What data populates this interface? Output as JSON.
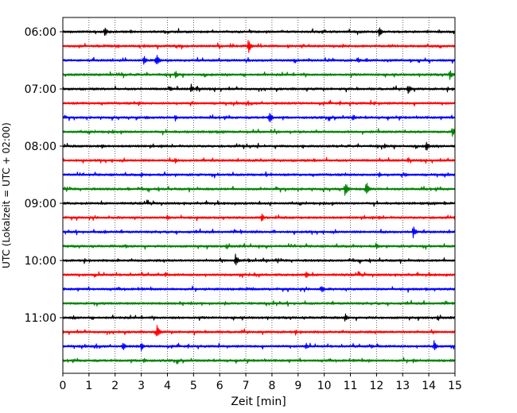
{
  "chart_data": {
    "type": "line",
    "title": "",
    "xlabel": "Zeit  [min]",
    "ylabel": "UTC (Lokalzeit = UTC + 02:00)",
    "xlim": [
      0,
      15
    ],
    "x_ticks": [
      "0",
      "1",
      "2",
      "3",
      "4",
      "5",
      "6",
      "7",
      "8",
      "9",
      "10",
      "11",
      "12",
      "13",
      "14",
      "15"
    ],
    "y_ticks": [
      "06:00",
      "07:00",
      "08:00",
      "09:00",
      "10:00",
      "11:00"
    ],
    "grid": "vertical-dotted",
    "trace_interval_min": 15,
    "colors": [
      "#000000",
      "#ff0000",
      "#0000ff",
      "#008000"
    ],
    "traces": [
      {
        "start": "06:00",
        "color": "#000000",
        "events": [
          [
            1.6,
            7
          ],
          [
            12.1,
            9
          ],
          [
            2.6,
            3
          ]
        ]
      },
      {
        "start": "06:15",
        "color": "#ff0000",
        "events": [
          [
            3.1,
            3
          ],
          [
            7.1,
            10
          ],
          [
            10.7,
            3
          ]
        ]
      },
      {
        "start": "06:30",
        "color": "#0000ff",
        "events": [
          [
            3.1,
            7
          ],
          [
            3.6,
            9
          ],
          [
            11.3,
            4
          ]
        ]
      },
      {
        "start": "06:45",
        "color": "#008000",
        "events": [
          [
            4.3,
            6
          ],
          [
            14.8,
            8
          ]
        ]
      },
      {
        "start": "07:00",
        "color": "#000000",
        "events": [
          [
            4.1,
            4
          ],
          [
            4.9,
            7
          ],
          [
            13.2,
            8
          ]
        ]
      },
      {
        "start": "07:15",
        "color": "#ff0000",
        "events": [
          [
            2.9,
            3
          ],
          [
            11.9,
            3
          ]
        ]
      },
      {
        "start": "07:30",
        "color": "#0000ff",
        "events": [
          [
            3.2,
            3
          ],
          [
            4.3,
            5
          ],
          [
            7.9,
            9
          ],
          [
            11.1,
            5
          ]
        ]
      },
      {
        "start": "07:45",
        "color": "#008000",
        "events": [
          [
            1.9,
            3
          ],
          [
            14.9,
            8
          ]
        ]
      },
      {
        "start": "08:00",
        "color": "#000000",
        "events": [
          [
            1.5,
            3
          ],
          [
            12.3,
            4
          ],
          [
            13.9,
            8
          ]
        ]
      },
      {
        "start": "08:15",
        "color": "#ff0000",
        "events": [
          [
            4.3,
            4
          ],
          [
            9.6,
            3
          ]
        ]
      },
      {
        "start": "08:30",
        "color": "#0000ff",
        "events": [
          [
            3.0,
            3
          ],
          [
            12.1,
            4
          ],
          [
            13.1,
            3
          ]
        ]
      },
      {
        "start": "08:45",
        "color": "#008000",
        "events": [
          [
            10.8,
            11
          ],
          [
            11.6,
            11
          ],
          [
            2.5,
            3
          ]
        ]
      },
      {
        "start": "09:00",
        "color": "#000000",
        "events": [
          [
            14.6,
            3
          ]
        ]
      },
      {
        "start": "09:15",
        "color": "#ff0000",
        "events": [
          [
            4.0,
            4
          ],
          [
            7.6,
            7
          ],
          [
            12.1,
            3
          ]
        ]
      },
      {
        "start": "09:30",
        "color": "#0000ff",
        "events": [
          [
            1.6,
            3
          ],
          [
            13.4,
            9
          ],
          [
            6.8,
            3
          ]
        ]
      },
      {
        "start": "09:45",
        "color": "#008000",
        "events": [
          [
            2.4,
            3
          ],
          [
            12.0,
            4
          ]
        ]
      },
      {
        "start": "10:00",
        "color": "#000000",
        "events": [
          [
            6.6,
            10
          ],
          [
            7.1,
            4
          ],
          [
            2.1,
            3
          ]
        ]
      },
      {
        "start": "10:15",
        "color": "#ff0000",
        "events": [
          [
            9.3,
            6
          ],
          [
            3.9,
            3
          ]
        ]
      },
      {
        "start": "10:30",
        "color": "#0000ff",
        "events": [
          [
            9.9,
            6
          ],
          [
            13.9,
            3
          ]
        ]
      },
      {
        "start": "10:45",
        "color": "#008000",
        "events": [
          [
            6.2,
            3
          ]
        ]
      },
      {
        "start": "11:00",
        "color": "#000000",
        "events": [
          [
            10.8,
            6
          ],
          [
            0.4,
            3
          ]
        ]
      },
      {
        "start": "11:15",
        "color": "#ff0000",
        "events": [
          [
            3.6,
            10
          ],
          [
            8.9,
            3
          ]
        ]
      },
      {
        "start": "11:30",
        "color": "#0000ff",
        "events": [
          [
            2.3,
            6
          ],
          [
            3.0,
            6
          ],
          [
            9.3,
            5
          ],
          [
            14.2,
            8
          ],
          [
            11.8,
            3
          ]
        ]
      },
      {
        "start": "11:45",
        "color": "#008000",
        "events": [
          [
            3.1,
            4
          ],
          [
            11.7,
            3
          ],
          [
            13.4,
            3
          ]
        ]
      }
    ]
  }
}
